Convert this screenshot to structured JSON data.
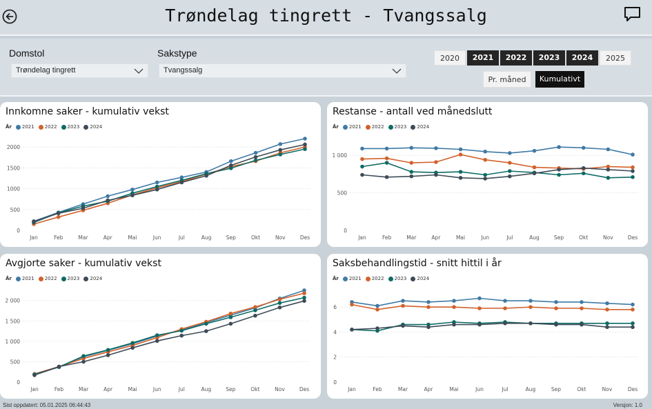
{
  "header": {
    "title": "Trøndelag tingrett - Tvangssalg"
  },
  "filters": {
    "domstol_label": "Domstol",
    "domstol_value": "Trøndelag tingrett",
    "sakstype_label": "Sakstype",
    "sakstype_value": "Tvangssalg"
  },
  "years": [
    {
      "label": "2020",
      "selected": false
    },
    {
      "label": "2021",
      "selected": true
    },
    {
      "label": "2022",
      "selected": true
    },
    {
      "label": "2023",
      "selected": true
    },
    {
      "label": "2024",
      "selected": true
    },
    {
      "label": "2025",
      "selected": false
    }
  ],
  "modes": [
    {
      "label": "Pr. måned",
      "selected": false
    },
    {
      "label": "Kumulativt",
      "selected": true
    }
  ],
  "legend_title": "År",
  "series_colors": {
    "2021": "#3f7aa5",
    "2022": "#d2612a",
    "2023": "#0d6b64",
    "2024": "#3e4b57"
  },
  "footer": {
    "updated": "Sist oppdatert: 05.01.2025 06:44:43",
    "version": "Versjon: 1.0"
  },
  "chart_data": [
    {
      "id": "innkomne",
      "type": "line",
      "title": "Innkomne saker - kumulativ vekst",
      "categories": [
        "Jan",
        "Feb",
        "Mar",
        "Apr",
        "Mai",
        "Jun",
        "Jul",
        "Aug",
        "Sep",
        "Okt",
        "Nov",
        "Des"
      ],
      "ylim": [
        0,
        2250
      ],
      "yticks": [
        0,
        500,
        1000,
        1500,
        2000
      ],
      "ytick_labels": [
        "0",
        "500",
        "1000",
        "1500",
        "2000"
      ],
      "series": [
        {
          "name": "2021",
          "values": [
            220,
            430,
            630,
            820,
            980,
            1150,
            1270,
            1400,
            1660,
            1860,
            2070,
            2200
          ]
        },
        {
          "name": "2022",
          "values": [
            150,
            320,
            480,
            650,
            850,
            1020,
            1170,
            1350,
            1530,
            1660,
            1860,
            2000
          ]
        },
        {
          "name": "2023",
          "values": [
            190,
            420,
            580,
            700,
            890,
            1050,
            1200,
            1360,
            1490,
            1680,
            1820,
            1950
          ]
        },
        {
          "name": "2024",
          "values": [
            210,
            410,
            530,
            720,
            840,
            980,
            1150,
            1310,
            1560,
            1760,
            1930,
            2060
          ]
        }
      ]
    },
    {
      "id": "restanse",
      "type": "line",
      "title": "Restanse - antall ved månedslutt",
      "categories": [
        "Jan",
        "Feb",
        "Mar",
        "Apr",
        "Mai",
        "Jun",
        "Jul",
        "Aug",
        "Sep",
        "Okt",
        "Nov",
        "Des"
      ],
      "ylim": [
        0,
        1250
      ],
      "yticks": [
        0,
        500,
        1000
      ],
      "ytick_labels": [
        "0",
        "500",
        "1 000"
      ],
      "series": [
        {
          "name": "2021",
          "values": [
            1090,
            1090,
            1100,
            1095,
            1080,
            1050,
            1030,
            1060,
            1110,
            1100,
            1080,
            1010
          ]
        },
        {
          "name": "2022",
          "values": [
            950,
            960,
            900,
            910,
            1010,
            940,
            900,
            840,
            830,
            820,
            850,
            840
          ]
        },
        {
          "name": "2023",
          "values": [
            850,
            900,
            780,
            770,
            780,
            740,
            790,
            770,
            740,
            760,
            700,
            710
          ]
        },
        {
          "name": "2024",
          "values": [
            740,
            710,
            720,
            740,
            700,
            690,
            720,
            760,
            810,
            830,
            810,
            790
          ]
        }
      ]
    },
    {
      "id": "avgjorte",
      "type": "line",
      "title": "Avgjorte saker - kumulativ vekst",
      "categories": [
        "Jan",
        "Feb",
        "Mar",
        "Apr",
        "Mai",
        "Jun",
        "Jul",
        "Aug",
        "Sep",
        "Okt",
        "Nov",
        "Des"
      ],
      "ylim": [
        0,
        2300
      ],
      "yticks": [
        0,
        500,
        1000,
        1500,
        2000
      ],
      "ytick_labels": [
        "0",
        "500",
        "1 000",
        "1 500",
        "2 000"
      ],
      "series": [
        {
          "name": "2021",
          "values": [
            180,
            370,
            620,
            780,
            940,
            1130,
            1280,
            1460,
            1640,
            1820,
            2050,
            2250
          ]
        },
        {
          "name": "2022",
          "values": [
            200,
            380,
            580,
            740,
            900,
            1090,
            1300,
            1480,
            1680,
            1840,
            2030,
            2180
          ]
        },
        {
          "name": "2023",
          "values": [
            190,
            370,
            640,
            790,
            960,
            1150,
            1260,
            1430,
            1590,
            1760,
            1940,
            2070
          ]
        },
        {
          "name": "2024",
          "values": [
            170,
            380,
            500,
            660,
            840,
            1010,
            1140,
            1250,
            1430,
            1630,
            1830,
            1990
          ]
        }
      ]
    },
    {
      "id": "saksbehandlingstid",
      "type": "line",
      "title": "Saksbehandlingstid - snitt hittil i år",
      "categories": [
        "Jan",
        "Feb",
        "Mar",
        "Apr",
        "Mai",
        "Jun",
        "Jul",
        "Aug",
        "Sep",
        "Okt",
        "Nov",
        "Des"
      ],
      "ylim": [
        0,
        7.5
      ],
      "yticks": [
        0,
        2,
        4,
        6
      ],
      "ytick_labels": [
        "0",
        "2",
        "4",
        "6"
      ],
      "series": [
        {
          "name": "2021",
          "values": [
            6.4,
            6.1,
            6.5,
            6.4,
            6.5,
            6.7,
            6.5,
            6.5,
            6.4,
            6.4,
            6.3,
            6.2
          ]
        },
        {
          "name": "2022",
          "values": [
            6.2,
            5.8,
            6.1,
            6.0,
            6.0,
            5.9,
            5.9,
            6.0,
            5.9,
            5.9,
            5.8,
            5.8
          ]
        },
        {
          "name": "2023",
          "values": [
            4.2,
            4.1,
            4.6,
            4.6,
            4.8,
            4.7,
            4.8,
            4.7,
            4.7,
            4.7,
            4.7,
            4.7
          ]
        },
        {
          "name": "2024",
          "values": [
            4.2,
            4.3,
            4.5,
            4.4,
            4.6,
            4.6,
            4.7,
            4.7,
            4.6,
            4.6,
            4.4,
            4.4
          ]
        }
      ]
    }
  ]
}
